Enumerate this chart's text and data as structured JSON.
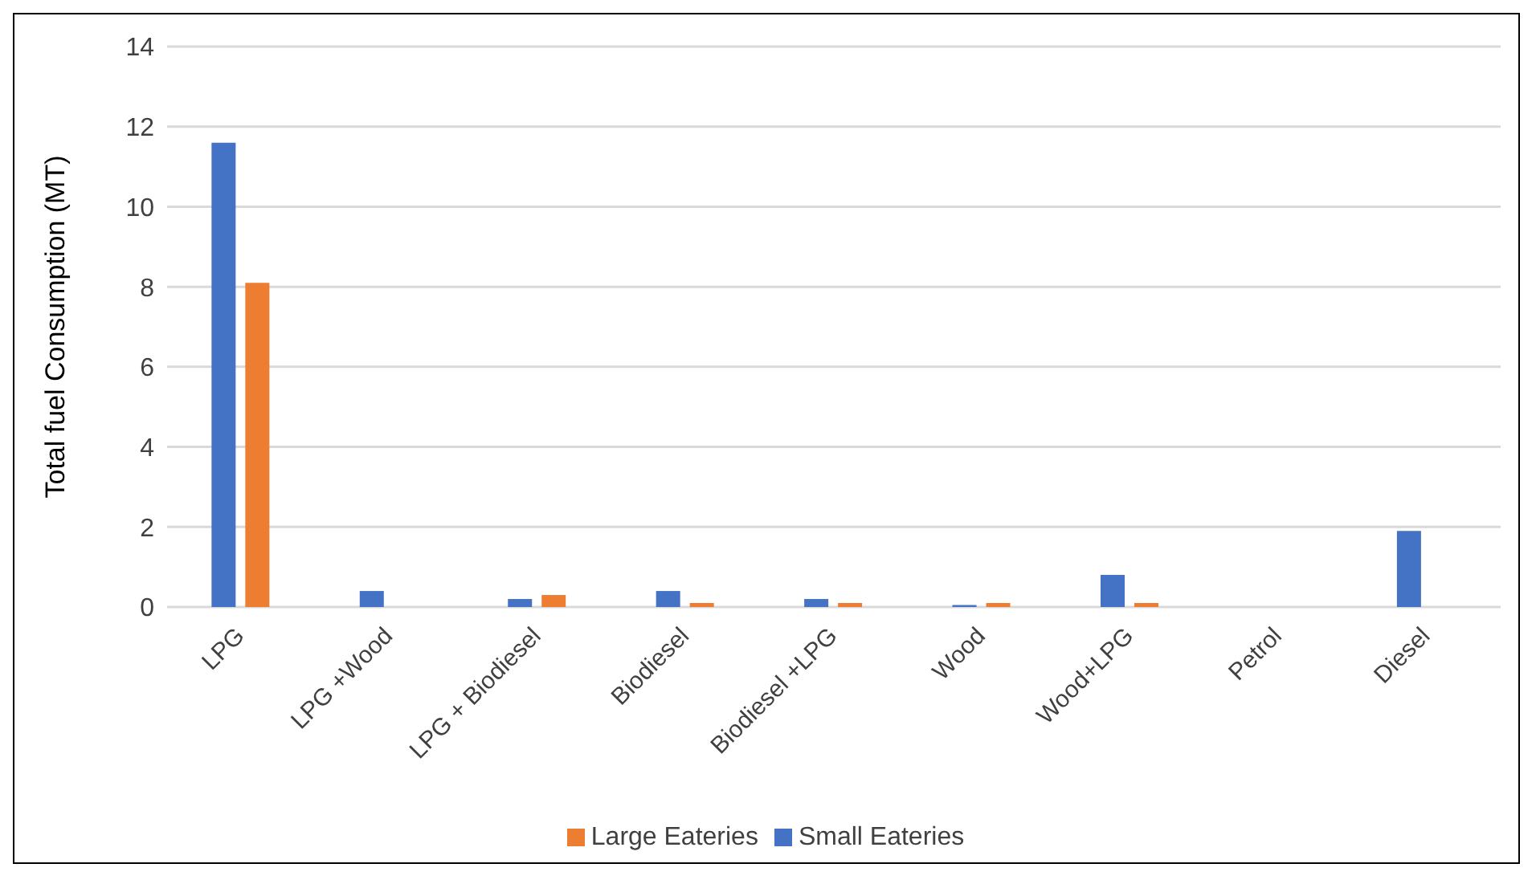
{
  "chart_data": {
    "type": "bar",
    "ylabel": "Total fuel Consumption (MT)",
    "categories": [
      "LPG",
      "LPG +Wood",
      "LPG + Biodiesel",
      "Biodiesel",
      "Biodiesel +LPG",
      "Wood",
      "Wood+LPG",
      "Petrol",
      "Diesel"
    ],
    "series": [
      {
        "name": "Small Eateries",
        "color": "#4472c4",
        "values": [
          11.6,
          0.4,
          0.2,
          0.4,
          0.2,
          0.05,
          0.8,
          0,
          1.9
        ]
      },
      {
        "name": "Large Eateries",
        "color": "#ed7d31",
        "values": [
          8.1,
          0,
          0.3,
          0.1,
          0.1,
          0.1,
          0.1,
          0,
          0
        ]
      }
    ],
    "ylim": [
      0,
      14
    ],
    "yticks": [
      0,
      2,
      4,
      6,
      8,
      10,
      12,
      14
    ],
    "grid": "y",
    "legend": "bottom"
  }
}
